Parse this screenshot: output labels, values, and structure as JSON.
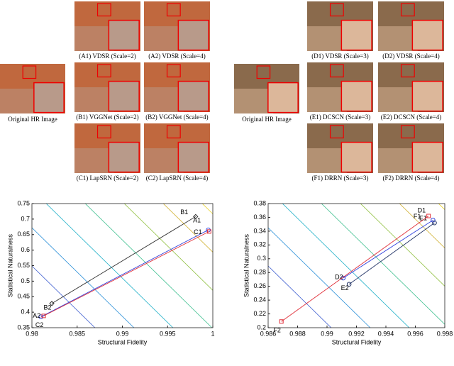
{
  "figure": {
    "left": {
      "original": "Original HR Image",
      "panels": [
        "(A1) VDSR (Scale=2)",
        "(A2) VDSR (Scale=4)",
        "(B1) VGGNet (Scale=2)",
        "(B2) VGGNet (Scale=4)",
        "(C1) LapSRN (Scale=2)",
        "(C2) LapSRN (Scale=4)"
      ]
    },
    "right": {
      "original": "Original HR Image",
      "panels": [
        "(D1) VDSR (Scale=3)",
        "(D2) VDSR (Scale=4)",
        "(E1) DCSCN (Scale=3)",
        "(E2) DCSCN (Scale=4)",
        "(F1) DRRN (Scale=3)",
        "(F2) DRRN (Scale=4)"
      ]
    }
  },
  "chart_data": [
    {
      "type": "scatter",
      "x_label": "Structural Fidelity",
      "y_label": "Statistical Naturalness",
      "xlim": [
        0.98,
        1
      ],
      "xticks": [
        0.98,
        0.985,
        0.99,
        0.995,
        1
      ],
      "ylim": [
        0.35,
        0.75
      ],
      "yticks": [
        0.35,
        0.4,
        0.45,
        0.5,
        0.55,
        0.6,
        0.65,
        0.7,
        0.75
      ],
      "series": [
        {
          "labels": [
            "A1",
            "A2"
          ],
          "color": "#3344dd",
          "marker": "circle",
          "x": [
            0.9995,
            0.981
          ],
          "values": [
            0.665,
            0.385
          ]
        },
        {
          "labels": [
            "B1",
            "B2"
          ],
          "color": "#333333",
          "marker": "diamond",
          "x": [
            0.9981,
            0.9822
          ],
          "values": [
            0.708,
            0.428
          ]
        },
        {
          "labels": [
            "C1",
            "C2"
          ],
          "color": "#e0303a",
          "marker": "square",
          "x": [
            0.9996,
            0.9813
          ],
          "values": [
            0.66,
            0.388
          ]
        }
      ]
    },
    {
      "type": "scatter",
      "x_label": "Structural Fidelity",
      "y_label": "Statistical Naturalness",
      "xlim": [
        0.986,
        0.998
      ],
      "xticks": [
        0.986,
        0.988,
        0.99,
        0.992,
        0.994,
        0.996,
        0.998
      ],
      "ylim": [
        0.2,
        0.38
      ],
      "yticks": [
        0.2,
        0.22,
        0.24,
        0.26,
        0.28,
        0.3,
        0.32,
        0.34,
        0.36,
        0.38
      ],
      "series": [
        {
          "labels": [
            "D1",
            "D2"
          ],
          "color": "#3344dd",
          "marker": "circle",
          "x": [
            0.9972,
            0.9911
          ],
          "values": [
            0.356,
            0.272
          ]
        },
        {
          "labels": [
            "E1",
            "E2"
          ],
          "color": "#223366",
          "marker": "circle",
          "x": [
            0.9973,
            0.9915
          ],
          "values": [
            0.352,
            0.263
          ]
        },
        {
          "labels": [
            "F1",
            "F2"
          ],
          "color": "#e0303a",
          "marker": "square",
          "x": [
            0.9969,
            0.9869
          ],
          "values": [
            0.362,
            0.209
          ]
        }
      ]
    }
  ]
}
